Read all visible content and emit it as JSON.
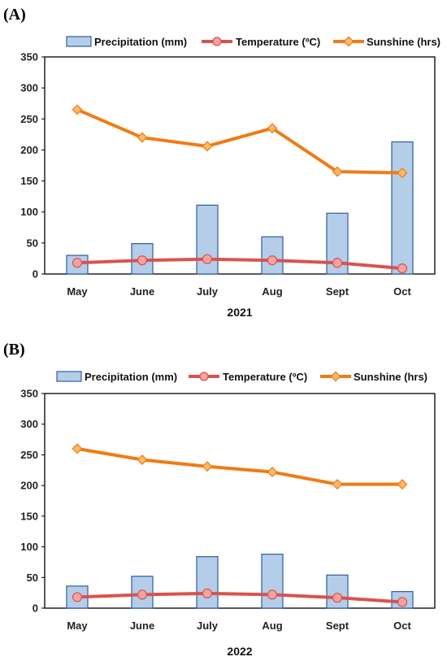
{
  "colors": {
    "bar_fill": "#b4cde9",
    "bar_stroke": "#2e5e9a",
    "temperature": "#d9534f",
    "temperature_marker": "#f4a3a0",
    "sunshine": "#f07b14",
    "sunshine_marker": "#fbb96a"
  },
  "chart_data": [
    {
      "panel_label": "(A)",
      "type": "bar",
      "categories": [
        "May",
        "June",
        "July",
        "Aug",
        "Sept",
        "Oct"
      ],
      "xlabel": "2021",
      "ylabel": "",
      "ylim": [
        0,
        350
      ],
      "yticks": [
        0,
        50,
        100,
        150,
        200,
        250,
        300,
        350
      ],
      "legend_position": "top",
      "series": [
        {
          "name": "Precipitation (mm)",
          "type": "bar",
          "values": [
            30,
            49,
            111,
            60,
            98,
            213
          ]
        },
        {
          "name": "Temperature (ºC)",
          "type": "line",
          "values": [
            18,
            22,
            24,
            22,
            18,
            9
          ]
        },
        {
          "name": "Sunshine (hrs)",
          "type": "line",
          "values": [
            265,
            220,
            206,
            235,
            165,
            163
          ]
        }
      ]
    },
    {
      "panel_label": "(B)",
      "type": "bar",
      "categories": [
        "May",
        "June",
        "July",
        "Aug",
        "Sept",
        "Oct"
      ],
      "xlabel": "2022",
      "ylabel": "",
      "ylim": [
        0,
        350
      ],
      "yticks": [
        0,
        50,
        100,
        150,
        200,
        250,
        300,
        350
      ],
      "legend_position": "top",
      "series": [
        {
          "name": "Precipitation (mm)",
          "type": "bar",
          "values": [
            36,
            52,
            84,
            88,
            54,
            27
          ]
        },
        {
          "name": "Temperature (ºC)",
          "type": "line",
          "values": [
            18,
            22,
            24,
            22,
            17,
            10
          ]
        },
        {
          "name": "Sunshine (hrs)",
          "type": "line",
          "values": [
            260,
            242,
            231,
            222,
            202,
            202
          ]
        }
      ]
    }
  ]
}
